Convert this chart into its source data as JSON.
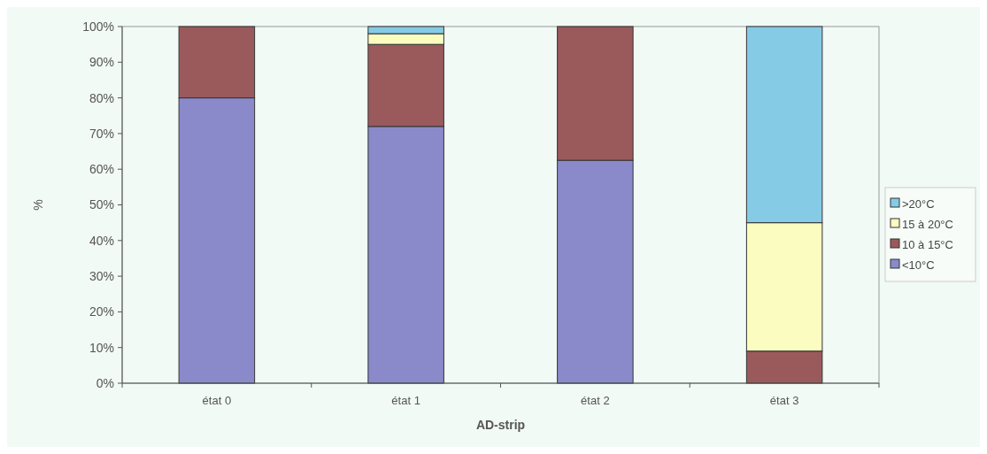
{
  "chart_data": {
    "type": "bar",
    "stacked": true,
    "xlabel": "AD-strip",
    "ylabel": "%",
    "categories": [
      "état 0",
      "état 1",
      "état 2",
      "état 3"
    ],
    "series": [
      {
        "name": "<10°C",
        "color": "#8a8acb",
        "values": [
          80,
          72,
          62.5,
          0
        ]
      },
      {
        "name": "10 à 15°C",
        "color": "#9a5a5c",
        "values": [
          20,
          23,
          37.5,
          9
        ]
      },
      {
        "name": "15 à 20°C",
        "color": "#fbfcc0",
        "values": [
          0,
          3,
          0,
          36
        ]
      },
      {
        "name": ">20°C",
        "color": "#86cbe6",
        "values": [
          0,
          2,
          0,
          55
        ]
      }
    ],
    "ylim": [
      0,
      100
    ],
    "yticks": [
      {
        "value": 0,
        "label": "0%"
      },
      {
        "value": 10,
        "label": "10%"
      },
      {
        "value": 20,
        "label": "20%"
      },
      {
        "value": 30,
        "label": "30%"
      },
      {
        "value": 40,
        "label": "40%"
      },
      {
        "value": 50,
        "label": "50%"
      },
      {
        "value": 60,
        "label": "60%"
      },
      {
        "value": 70,
        "label": "70%"
      },
      {
        "value": 80,
        "label": "80%"
      },
      {
        "value": 90,
        "label": "90%"
      },
      {
        "value": 100,
        "label": "100%"
      }
    ],
    "grid": false,
    "legend": "right"
  }
}
